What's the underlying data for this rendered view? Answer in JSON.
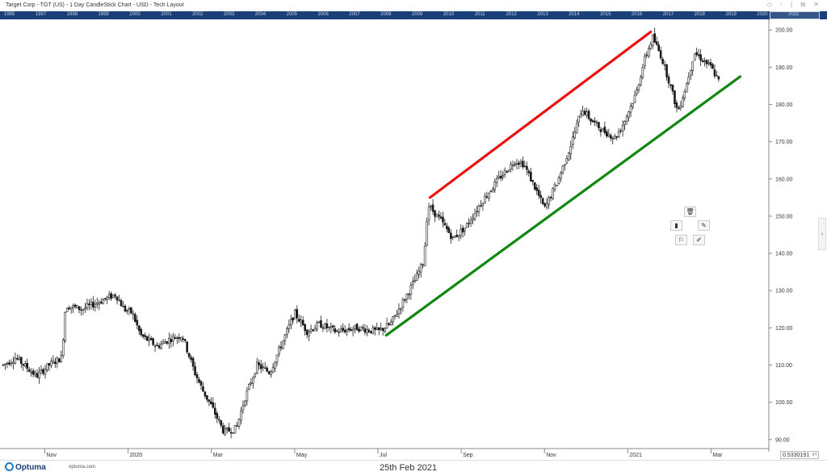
{
  "header": {
    "title": "Target Corp - TGT (US) - 1 Day CandleStick Chart - USD - Tech Layout",
    "window_icons": "◇ ▫ | ⧉ ✕"
  },
  "year_strip": [
    "1995",
    "1997",
    "1998",
    "1999",
    "2000",
    "2001",
    "2002",
    "2003",
    "2004",
    "2005",
    "2006",
    "2007",
    "2008",
    "2009",
    "2010",
    "2011",
    "2012",
    "2013",
    "2014",
    "2015",
    "2016",
    "2017",
    "2018",
    "2019",
    "2020",
    "2021"
  ],
  "footer": {
    "logo_text": "Optuma",
    "site": "optuma.com",
    "date": "25th Feb 2021",
    "readout": "0.5330191",
    "readout_tag": "XY"
  },
  "side_tab": "‹",
  "chart_data": {
    "type": "candlestick",
    "title": "Target Corp - TGT (US) - 1 Day CandleStick Chart - USD - Tech Layout",
    "xlabel": "",
    "ylabel": "",
    "ylim": [
      88,
      202
    ],
    "y_ticks": [
      "90.00",
      "100.00",
      "110.00",
      "120.00",
      "130.00",
      "140.00",
      "150.00",
      "160.00",
      "170.00",
      "180.00",
      "190.00",
      "200.00"
    ],
    "x_ticks": [
      "Nov",
      "2020",
      "Mar",
      "May",
      "Jul",
      "Sep",
      "Nov",
      "2021",
      "Mar"
    ],
    "x_tick_positions_month_index": [
      1,
      3,
      5,
      7,
      9,
      11,
      13,
      15,
      17
    ],
    "x_range_months": [
      0,
      18.35
    ],
    "grid": false,
    "price_path": [
      {
        "m": 0.0,
        "p": 110
      },
      {
        "m": 0.3,
        "p": 112
      },
      {
        "m": 0.6,
        "p": 109
      },
      {
        "m": 0.8,
        "p": 107
      },
      {
        "m": 1.1,
        "p": 110
      },
      {
        "m": 1.4,
        "p": 112
      },
      {
        "m": 1.5,
        "p": 126
      },
      {
        "m": 1.9,
        "p": 125
      },
      {
        "m": 2.3,
        "p": 127
      },
      {
        "m": 2.7,
        "p": 129
      },
      {
        "m": 2.9,
        "p": 125
      },
      {
        "m": 3.1,
        "p": 124
      },
      {
        "m": 3.3,
        "p": 118
      },
      {
        "m": 3.7,
        "p": 115
      },
      {
        "m": 4.0,
        "p": 117
      },
      {
        "m": 4.3,
        "p": 118
      },
      {
        "m": 4.6,
        "p": 108
      },
      {
        "m": 4.8,
        "p": 103
      },
      {
        "m": 5.0,
        "p": 99
      },
      {
        "m": 5.3,
        "p": 92
      },
      {
        "m": 5.6,
        "p": 93
      },
      {
        "m": 5.8,
        "p": 101
      },
      {
        "m": 6.1,
        "p": 110
      },
      {
        "m": 6.4,
        "p": 108
      },
      {
        "m": 6.7,
        "p": 116
      },
      {
        "m": 7.0,
        "p": 124
      },
      {
        "m": 7.3,
        "p": 119
      },
      {
        "m": 7.6,
        "p": 121
      },
      {
        "m": 8.0,
        "p": 119
      },
      {
        "m": 8.5,
        "p": 120
      },
      {
        "m": 9.0,
        "p": 119
      },
      {
        "m": 9.3,
        "p": 121
      },
      {
        "m": 9.6,
        "p": 127
      },
      {
        "m": 9.9,
        "p": 133
      },
      {
        "m": 10.1,
        "p": 138
      },
      {
        "m": 10.2,
        "p": 153
      },
      {
        "m": 10.5,
        "p": 149
      },
      {
        "m": 10.8,
        "p": 144
      },
      {
        "m": 11.1,
        "p": 147
      },
      {
        "m": 11.5,
        "p": 154
      },
      {
        "m": 11.9,
        "p": 160
      },
      {
        "m": 12.3,
        "p": 165
      },
      {
        "m": 12.5,
        "p": 164
      },
      {
        "m": 12.8,
        "p": 157
      },
      {
        "m": 13.0,
        "p": 152
      },
      {
        "m": 13.3,
        "p": 159
      },
      {
        "m": 13.6,
        "p": 168
      },
      {
        "m": 13.9,
        "p": 179
      },
      {
        "m": 14.1,
        "p": 176
      },
      {
        "m": 14.4,
        "p": 173
      },
      {
        "m": 14.7,
        "p": 171
      },
      {
        "m": 14.9,
        "p": 175
      },
      {
        "m": 15.2,
        "p": 183
      },
      {
        "m": 15.4,
        "p": 192
      },
      {
        "m": 15.6,
        "p": 198
      },
      {
        "m": 15.8,
        "p": 193
      },
      {
        "m": 16.0,
        "p": 186
      },
      {
        "m": 16.2,
        "p": 178
      },
      {
        "m": 16.4,
        "p": 185
      },
      {
        "m": 16.6,
        "p": 194
      },
      {
        "m": 16.8,
        "p": 192
      },
      {
        "m": 17.0,
        "p": 190
      },
      {
        "m": 17.2,
        "p": 186
      }
    ],
    "trendlines": [
      {
        "name": "upper-channel",
        "color": "#ee1111",
        "from": {
          "m": 10.25,
          "p": 155
        },
        "to": {
          "m": 15.55,
          "p": 199.5
        }
      },
      {
        "name": "lower-support",
        "color": "#118811",
        "from": {
          "m": 9.2,
          "p": 118
        },
        "to": {
          "m": 17.7,
          "p": 187.5
        }
      }
    ],
    "colors": {
      "candle": "#1a1a1a",
      "axis": "#888888"
    }
  }
}
